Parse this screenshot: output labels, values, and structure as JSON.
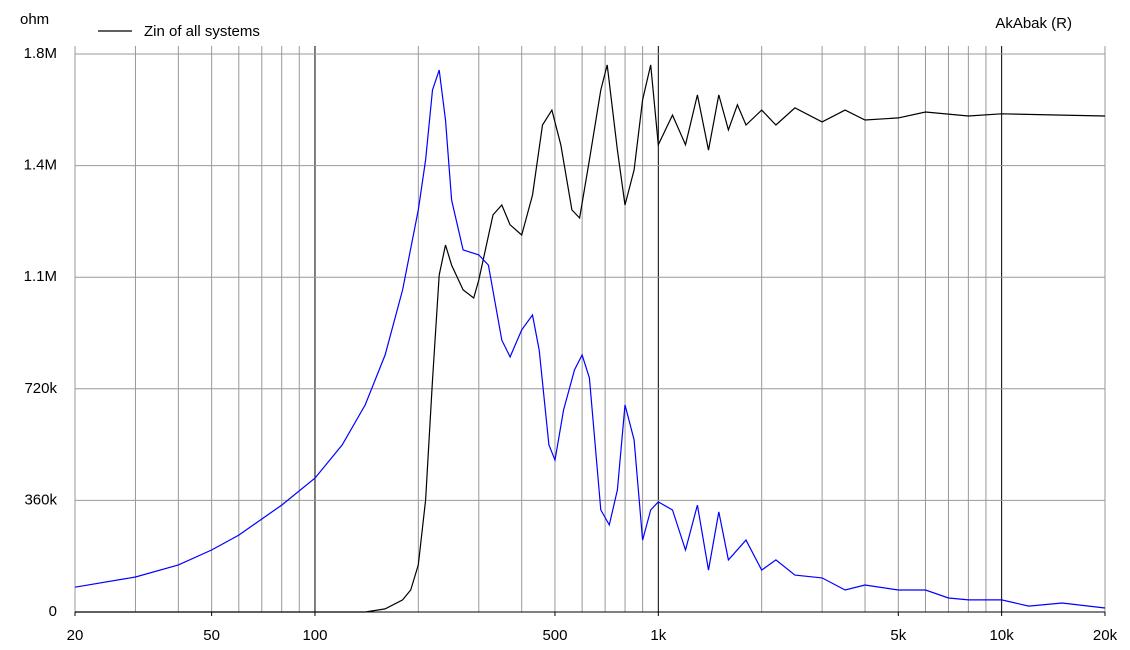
{
  "chart_data": {
    "type": "line",
    "title": "AkAbak (R)",
    "y_label": "ohm",
    "x_log": true,
    "grid": true,
    "legend": "top-left",
    "xlim": [
      20,
      20000
    ],
    "xticks": [
      20,
      50,
      100,
      500,
      {
        "value": 1000,
        "label": "1k"
      },
      {
        "value": 5000,
        "label": "5k"
      },
      {
        "value": 10000,
        "label": "10k"
      },
      {
        "value": 20000,
        "label": "20k"
      }
    ],
    "ylim": [
      0,
      1800000
    ],
    "yticks": [
      {
        "value": 0,
        "label": "0"
      },
      {
        "value": 360000,
        "label": "360k"
      },
      {
        "value": 720000,
        "label": "720k"
      },
      {
        "value": 1080000,
        "label": "1.1M"
      },
      {
        "value": 1440000,
        "label": "1.4M"
      },
      {
        "value": 1800000,
        "label": "1.8M"
      }
    ],
    "series": [
      {
        "name": "Zin of all systems",
        "color": "#000000",
        "x": [
          20,
          50,
          100,
          140,
          160,
          180,
          190,
          200,
          210,
          220,
          230,
          240,
          250,
          270,
          290,
          300,
          330,
          350,
          370,
          400,
          430,
          460,
          490,
          520,
          560,
          590,
          630,
          680,
          710,
          760,
          800,
          850,
          900,
          950,
          1000,
          1100,
          1200,
          1300,
          1400,
          1500,
          1600,
          1700,
          1800,
          2000,
          2200,
          2500,
          3000,
          3500,
          4000,
          5000,
          6000,
          8000,
          10000,
          15000,
          20000
        ],
        "values": [
          0,
          0,
          0,
          0,
          10000,
          39000,
          71000,
          152000,
          361000,
          748000,
          1087000,
          1184000,
          1119000,
          1039000,
          1013000,
          1071000,
          1281000,
          1313000,
          1249000,
          1216000,
          1345000,
          1571000,
          1619000,
          1507000,
          1297000,
          1271000,
          1458000,
          1684000,
          1765000,
          1490000,
          1313000,
          1426000,
          1652000,
          1765000,
          1507000,
          1603000,
          1507000,
          1668000,
          1490000,
          1668000,
          1555000,
          1636000,
          1571000,
          1619000,
          1571000,
          1626000,
          1581000,
          1619000,
          1587000,
          1594000,
          1613000,
          1600000,
          1607000,
          1603000,
          1600000
        ]
      },
      {
        "color": "#0000ff",
        "x": [
          20,
          30,
          40,
          50,
          60,
          80,
          100,
          120,
          140,
          160,
          180,
          200,
          210,
          220,
          230,
          240,
          250,
          270,
          300,
          320,
          350,
          370,
          400,
          430,
          450,
          480,
          500,
          530,
          570,
          600,
          630,
          680,
          720,
          760,
          800,
          850,
          900,
          950,
          1000,
          1100,
          1200,
          1300,
          1400,
          1500,
          1600,
          1800,
          2000,
          2200,
          2500,
          3000,
          3500,
          4000,
          5000,
          6000,
          7000,
          8000,
          10000,
          12000,
          15000,
          20000
        ],
        "values": [
          80000,
          113000,
          152000,
          200000,
          248000,
          345000,
          432000,
          539000,
          668000,
          829000,
          1039000,
          1297000,
          1458000,
          1684000,
          1748000,
          1587000,
          1329000,
          1168000,
          1152000,
          1119000,
          877000,
          823000,
          910000,
          958000,
          845000,
          539000,
          490000,
          652000,
          781000,
          829000,
          755000,
          329000,
          281000,
          394000,
          668000,
          555000,
          232000,
          329000,
          355000,
          329000,
          200000,
          345000,
          135000,
          323000,
          168000,
          232000,
          135000,
          168000,
          119000,
          110000,
          71000,
          87000,
          71000,
          71000,
          45000,
          39000,
          39000,
          19000,
          29000,
          13000
        ]
      }
    ]
  }
}
